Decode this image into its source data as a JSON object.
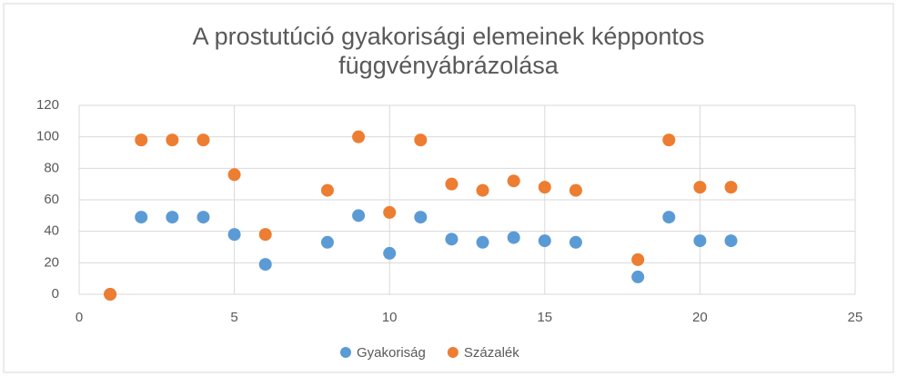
{
  "chart_data": {
    "type": "scatter",
    "title": "A prostutúció gyakorisági elemeinek képpontos függvényábrázolása",
    "series": [
      {
        "name": "Gyakoriság",
        "color": "#5b9bd5",
        "x": [
          1,
          2,
          3,
          4,
          5,
          6,
          8,
          9,
          10,
          11,
          12,
          13,
          14,
          15,
          16,
          18,
          19,
          20,
          21
        ],
        "values": [
          0,
          49,
          49,
          49,
          38,
          19,
          33,
          50,
          26,
          49,
          35,
          33,
          36,
          34,
          33,
          11,
          49,
          34,
          34
        ]
      },
      {
        "name": "Százalék",
        "color": "#ed7d31",
        "x": [
          1,
          2,
          3,
          4,
          5,
          6,
          8,
          9,
          10,
          11,
          12,
          13,
          14,
          15,
          16,
          18,
          19,
          20,
          21
        ],
        "values": [
          0,
          98,
          98,
          98,
          76,
          38,
          66,
          100,
          52,
          98,
          70,
          66,
          72,
          68,
          66,
          22,
          98,
          68,
          68
        ]
      }
    ],
    "xlim": [
      0,
      25
    ],
    "xticks": [
      0,
      5,
      10,
      15,
      20,
      25
    ],
    "ylim": [
      0,
      120
    ],
    "yticks": [
      0,
      20,
      40,
      60,
      80,
      100,
      120
    ],
    "grid": true,
    "legend": "bottom"
  }
}
